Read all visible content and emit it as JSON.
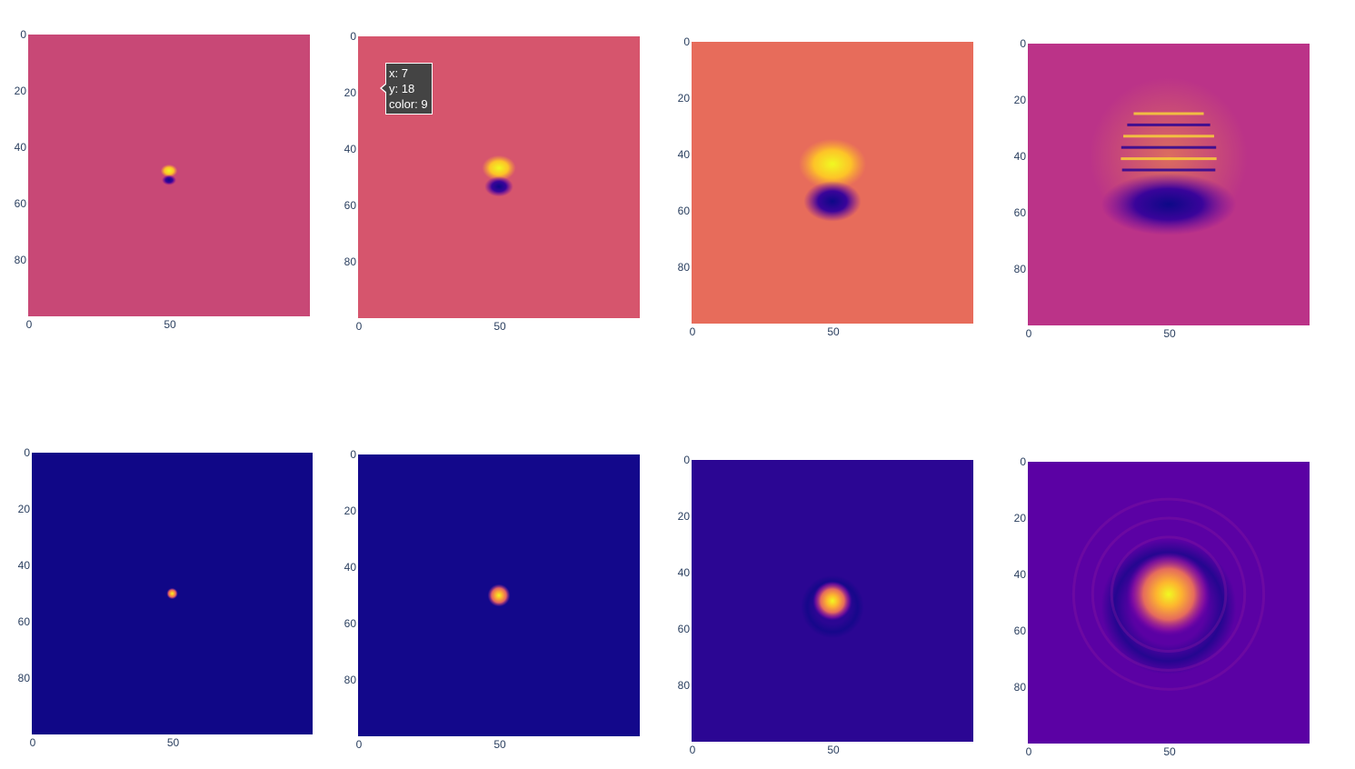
{
  "chart_data": [
    {
      "type": "heatmap",
      "row": 1,
      "col": 1,
      "background": "#c84876",
      "x_ticks": [
        "0",
        "50"
      ],
      "y_ticks": [
        "0",
        "20",
        "40",
        "60",
        "80"
      ],
      "xlim": [
        0,
        100
      ],
      "ylim": [
        0,
        100
      ],
      "center": [
        50,
        50
      ],
      "radius": 3,
      "pattern": "dipole"
    },
    {
      "type": "heatmap",
      "row": 1,
      "col": 2,
      "background": "#d6556d",
      "x_ticks": [
        "0",
        "50"
      ],
      "y_ticks": [
        "0",
        "20",
        "40",
        "60",
        "80"
      ],
      "xlim": [
        0,
        100
      ],
      "ylim": [
        0,
        100
      ],
      "center": [
        50,
        50
      ],
      "radius": 6,
      "pattern": "dipole"
    },
    {
      "type": "heatmap",
      "row": 1,
      "col": 3,
      "background": "#e76c5b",
      "x_ticks": [
        "0",
        "50"
      ],
      "y_ticks": [
        "0",
        "20",
        "40",
        "60",
        "80"
      ],
      "xlim": [
        0,
        100
      ],
      "ylim": [
        0,
        100
      ],
      "center": [
        50,
        50
      ],
      "radius": 12,
      "pattern": "dipole"
    },
    {
      "type": "heatmap",
      "row": 1,
      "col": 4,
      "background": "#bb3388",
      "x_ticks": [
        "0",
        "50"
      ],
      "y_ticks": [
        "0",
        "20",
        "40",
        "60",
        "80"
      ],
      "xlim": [
        0,
        100
      ],
      "ylim": [
        0,
        100
      ],
      "center": [
        50,
        40
      ],
      "radius": 20,
      "pattern": "rings"
    },
    {
      "type": "heatmap",
      "row": 2,
      "col": 1,
      "background": "#100787",
      "x_ticks": [
        "0",
        "50"
      ],
      "y_ticks": [
        "0",
        "20",
        "40",
        "60",
        "80"
      ],
      "xlim": [
        0,
        100
      ],
      "ylim": [
        0,
        100
      ],
      "center": [
        50,
        50
      ],
      "radius": 2,
      "pattern": "spot"
    },
    {
      "type": "heatmap",
      "row": 2,
      "col": 2,
      "background": "#13088b",
      "x_ticks": [
        "0",
        "50"
      ],
      "y_ticks": [
        "0",
        "20",
        "40",
        "60",
        "80"
      ],
      "xlim": [
        0,
        100
      ],
      "ylim": [
        0,
        100
      ],
      "center": [
        50,
        50
      ],
      "radius": 4,
      "pattern": "spot"
    },
    {
      "type": "heatmap",
      "row": 2,
      "col": 3,
      "background": "#2b0693",
      "x_ticks": [
        "0",
        "50"
      ],
      "y_ticks": [
        "0",
        "20",
        "40",
        "60",
        "80"
      ],
      "xlim": [
        0,
        100
      ],
      "ylim": [
        0,
        100
      ],
      "center": [
        50,
        50
      ],
      "radius": 7,
      "pattern": "spot-halo"
    },
    {
      "type": "heatmap",
      "row": 2,
      "col": 4,
      "background": "#5b01a4",
      "x_ticks": [
        "0",
        "50"
      ],
      "y_ticks": [
        "0",
        "20",
        "40",
        "60",
        "80"
      ],
      "xlim": [
        0,
        100
      ],
      "ylim": [
        0,
        100
      ],
      "center": [
        50,
        47
      ],
      "radius": 15,
      "pattern": "spot-rings"
    }
  ],
  "tooltip": {
    "x_line": "x: 7",
    "y_line": "y: 18",
    "color_line": "color: 9"
  }
}
